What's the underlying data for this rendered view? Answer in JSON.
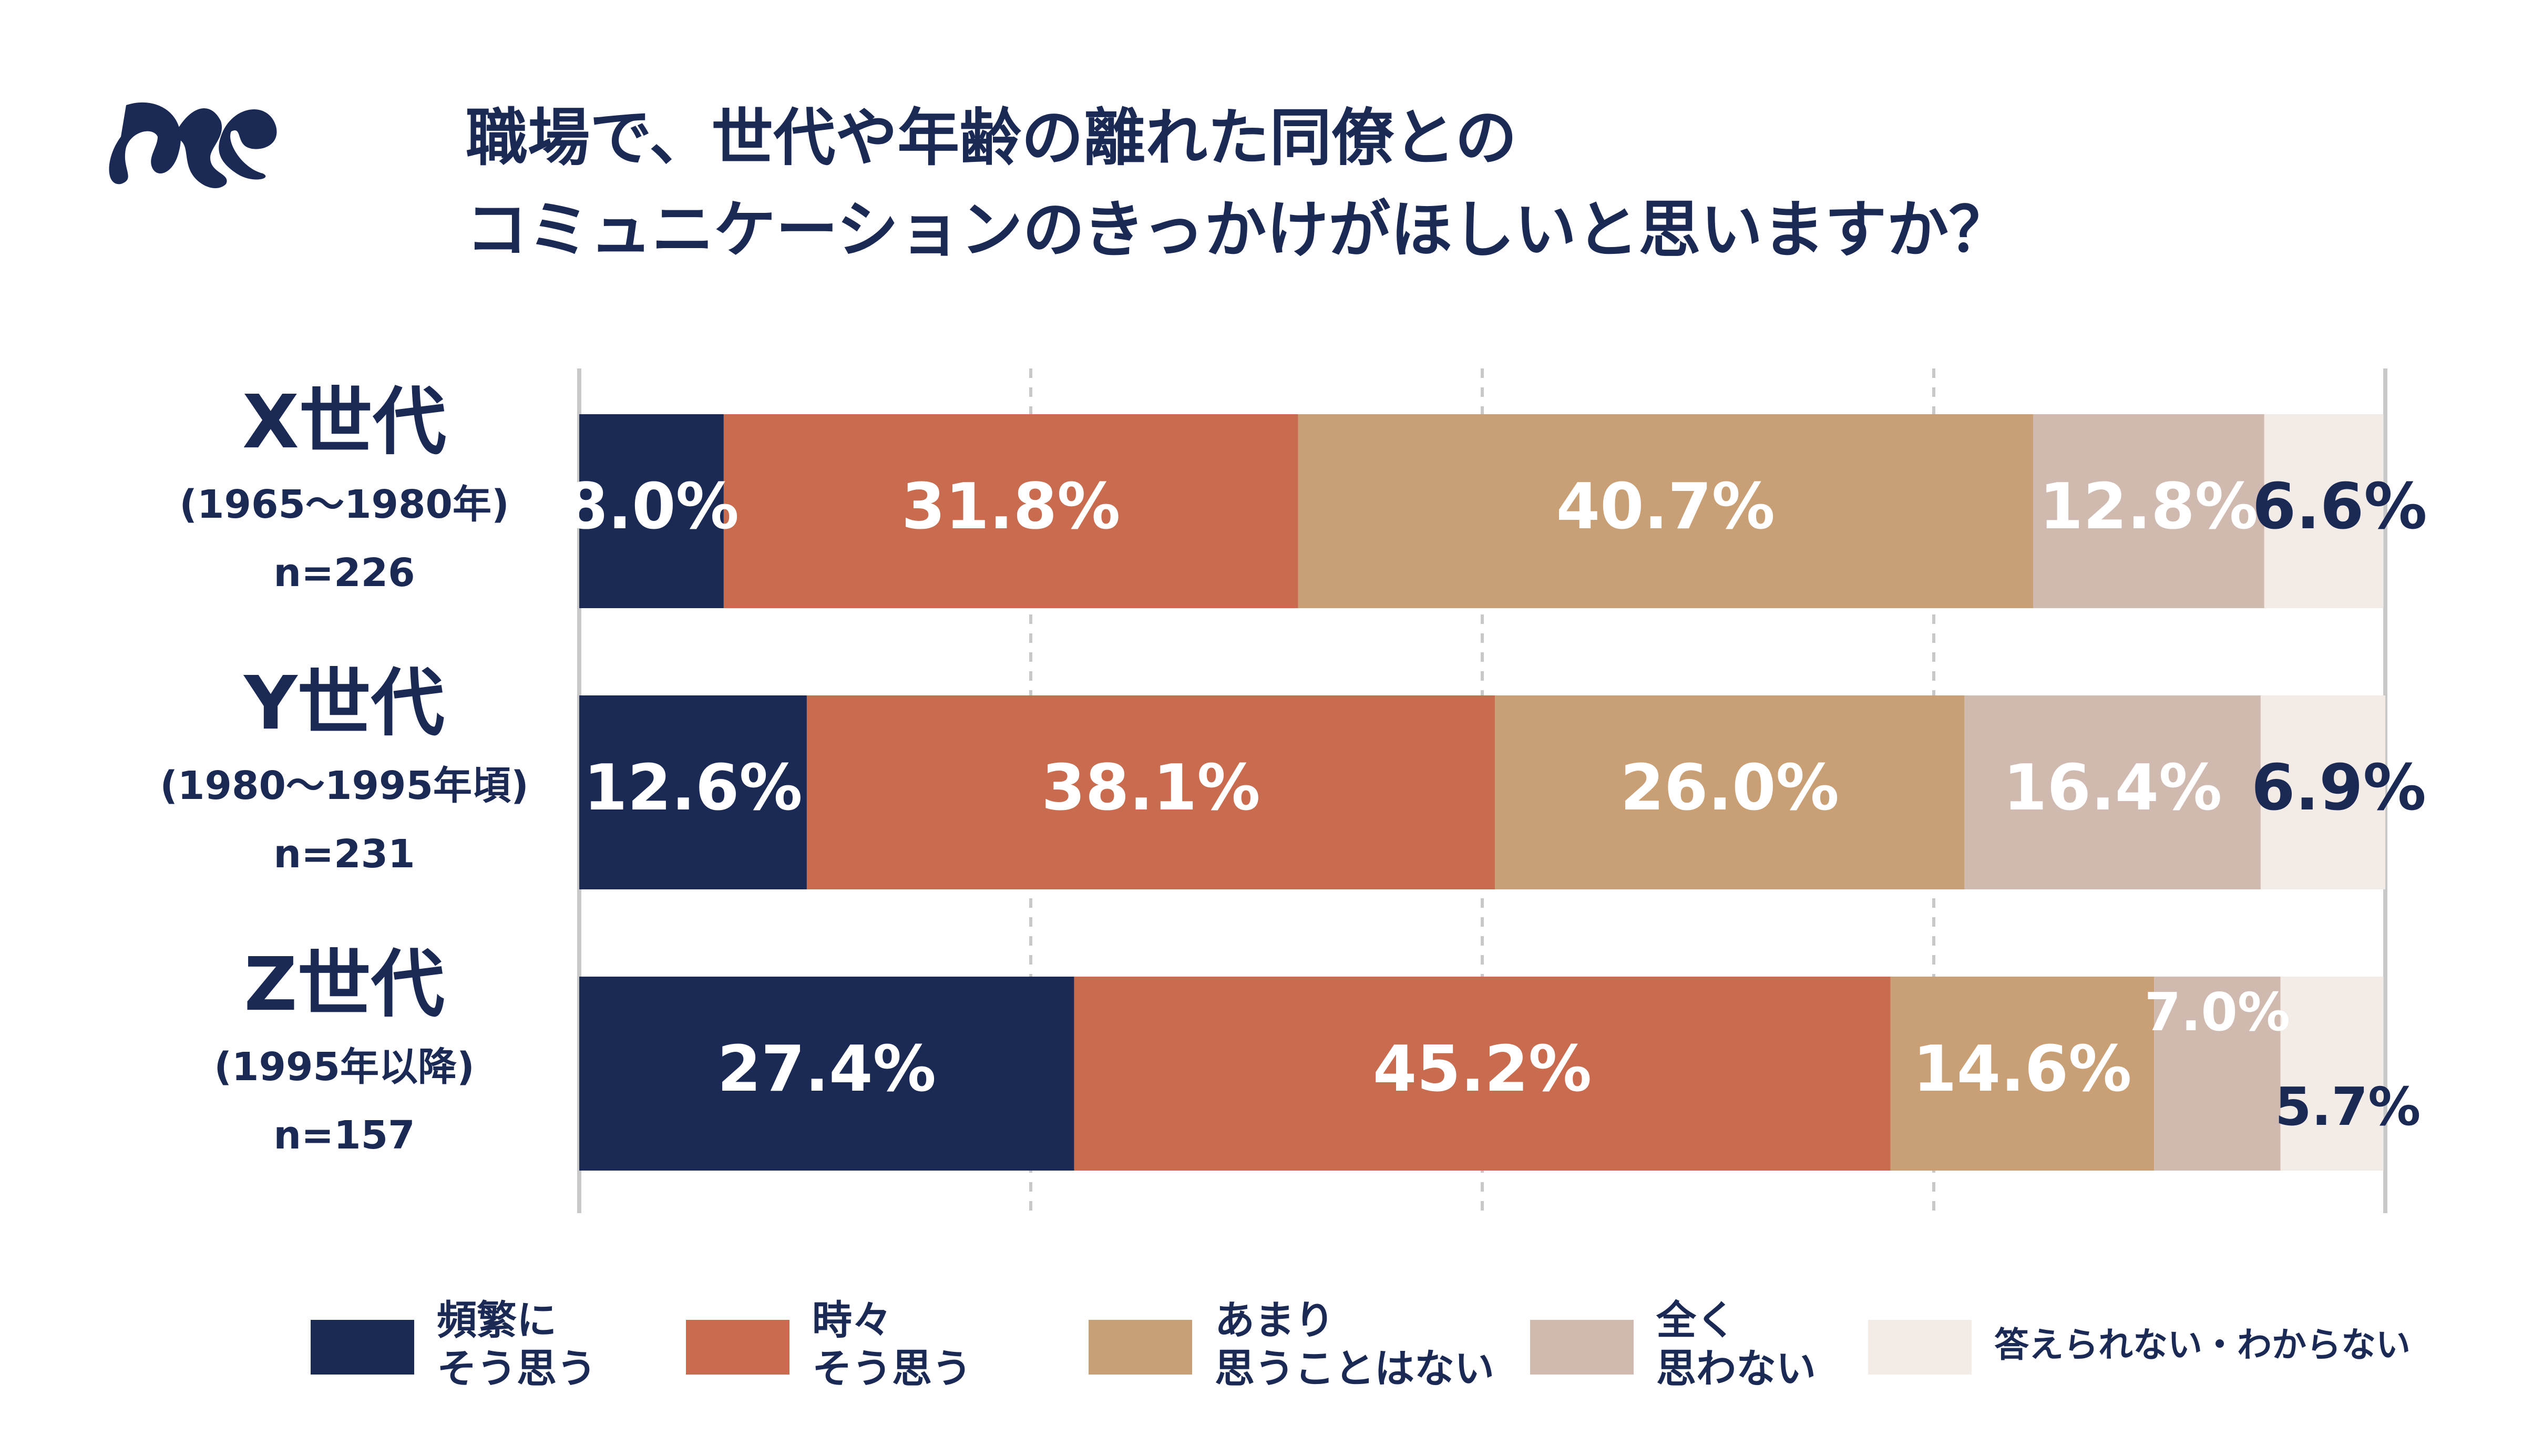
{
  "chart_data": {
    "type": "stacked-bar-horizontal",
    "title": [
      "職場で、世代や年齢の離れた同僚との",
      "コミュニケーションのきっかけがほしいと思いますか？"
    ],
    "categories": [
      "X世代",
      "Y世代",
      "Z世代"
    ],
    "category_periods": [
      "(1965〜1980年)",
      "(1980〜1995年頃)",
      "(1995年以降)"
    ],
    "category_n": [
      "n=226",
      "n=231",
      "n=157"
    ],
    "xlim": [
      0,
      100
    ],
    "xticks": [
      0,
      25,
      50,
      75,
      100
    ],
    "grid": true,
    "legend": "bottom",
    "series": [
      {
        "name": "頻繁に\nそう思う",
        "color": "#1b2a55",
        "values": [
          8.0,
          12.6,
          27.4
        ],
        "value_labels": [
          "8.0%",
          "12.6%",
          "27.4%"
        ]
      },
      {
        "name": "時々\nそう思う",
        "color": "#c96b4e",
        "values": [
          31.8,
          38.1,
          45.2
        ],
        "value_labels": [
          "31.8%",
          "38.1%",
          "45.2%"
        ]
      },
      {
        "name": "あまり\n思うことはない",
        "color": "#c9a075",
        "values": [
          40.7,
          26.0,
          14.6
        ],
        "value_labels": [
          "40.7%",
          "26.0%",
          "14.6%"
        ]
      },
      {
        "name": "全く\n思わない",
        "color": "#d0bab0",
        "values": [
          12.8,
          16.4,
          7.0
        ],
        "value_labels": [
          "12.8%",
          "16.4%",
          "7.0%"
        ]
      },
      {
        "name": "答えられない・わからない",
        "color": "#f3ebe6",
        "values": [
          6.6,
          6.9,
          5.7
        ],
        "value_labels": [
          "6.6%",
          "6.9%",
          "5.7%"
        ]
      }
    ]
  }
}
